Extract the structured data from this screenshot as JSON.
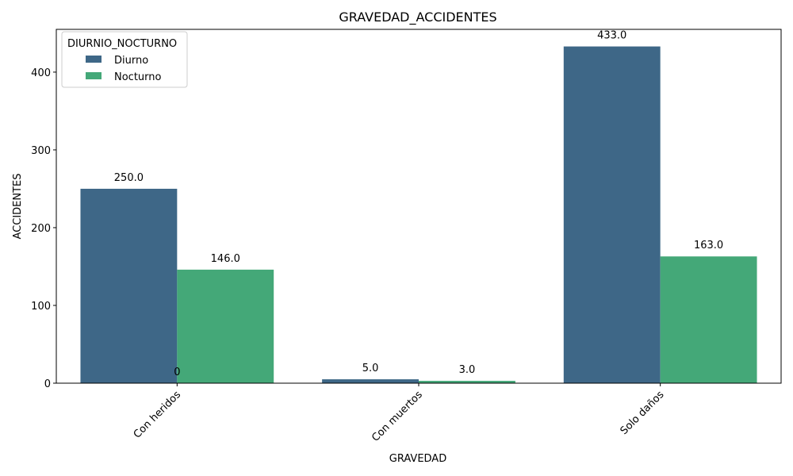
{
  "chart_data": {
    "type": "bar",
    "title": "GRAVEDAD_ACCIDENTES",
    "xlabel": "GRAVEDAD",
    "ylabel": "ACCIDENTES",
    "categories": [
      "Con heridos",
      "Con muertos",
      "Solo daños"
    ],
    "series": [
      {
        "name": "Diurno",
        "color": "#3e6787",
        "values": [
          250,
          5,
          433
        ]
      },
      {
        "name": "Nocturno",
        "color": "#44a878",
        "values": [
          146,
          3,
          163
        ]
      }
    ],
    "data_labels": [
      [
        "250.0",
        "5.0",
        "433.0"
      ],
      [
        "146.0",
        "3.0",
        "163.0"
      ]
    ],
    "extra_annotation": {
      "text": "0",
      "category": "Con heridos"
    },
    "ylim": [
      0,
      455
    ],
    "yticks": [
      0,
      100,
      200,
      300,
      400
    ],
    "ytick_labels": [
      "0",
      "100",
      "200",
      "300",
      "400"
    ],
    "legend": {
      "title": "DIURNIO_NOCTURNO",
      "placement": "top-left"
    },
    "grid": false
  }
}
